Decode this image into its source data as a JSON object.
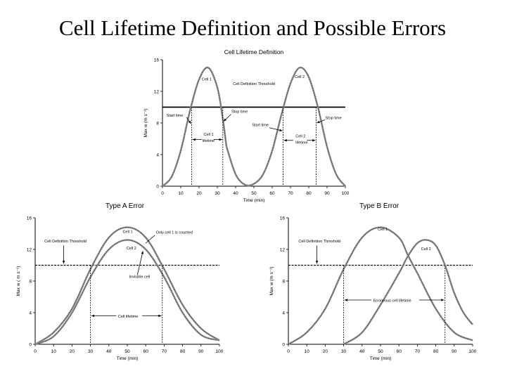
{
  "slide": {
    "title": "Cell Lifetime Definition and Possible Errors",
    "label_type_a": "Type A Error",
    "label_type_b": "Type B Error"
  },
  "chart_data": [
    {
      "type": "line",
      "title": "Cell Lifetime Definition",
      "xlabel": "Time (min)",
      "ylabel": "Max w (m s⁻¹)",
      "xlim": [
        0,
        100
      ],
      "ylim": [
        0,
        16
      ],
      "xticks": [
        0,
        10,
        20,
        30,
        40,
        50,
        60,
        70,
        80,
        90,
        100
      ],
      "yticks": [
        0,
        4,
        8,
        12,
        16
      ],
      "threshold": 10,
      "series": [
        {
          "name": "Cell 1",
          "x": [
            0,
            5,
            10,
            15,
            20,
            25,
            30,
            33,
            35
          ],
          "y": [
            0,
            1.2,
            4.5,
            9.5,
            13.5,
            15,
            12.5,
            8.5,
            5
          ]
        },
        {
          "name": "Cell 2",
          "x": [
            35,
            40,
            45,
            50,
            55,
            60,
            65,
            70,
            75,
            80,
            85,
            90,
            95,
            100
          ],
          "y": [
            5,
            1.5,
            0.2,
            0.3,
            1.5,
            4.5,
            9,
            13,
            15,
            13.8,
            10,
            5,
            1.5,
            0
          ]
        }
      ],
      "markers": [
        16,
        33,
        66,
        84
      ],
      "annotations": [
        "Cell 1",
        "Cell 2",
        "Cell Definition Threshold",
        "Stop time",
        "Start time",
        "Stop time",
        "Start time",
        "Cell 1",
        "lifetime",
        "Cell 2",
        "lifetime"
      ]
    },
    {
      "type": "line",
      "title": "",
      "xlabel": "Time (min)",
      "ylabel": "Max w ( m s⁻¹)",
      "xlim": [
        0,
        100
      ],
      "ylim": [
        0,
        16
      ],
      "xticks": [
        0,
        10,
        20,
        30,
        40,
        50,
        60,
        70,
        80,
        90,
        100
      ],
      "yticks": [
        0,
        4,
        8,
        12,
        16
      ],
      "threshold": 10,
      "series": [
        {
          "name": "Cell 1",
          "x": [
            0,
            10,
            20,
            30,
            40,
            50,
            60,
            70,
            80,
            90,
            100
          ],
          "y": [
            0,
            1.5,
            4.5,
            9.5,
            13.5,
            14.8,
            13.5,
            9.5,
            5,
            2,
            0.5
          ]
        },
        {
          "name": "Cell 2",
          "x": [
            0,
            10,
            20,
            30,
            40,
            50,
            60,
            70,
            80,
            90,
            100
          ],
          "y": [
            0,
            1,
            4,
            8.5,
            12,
            13.2,
            12,
            8.5,
            4,
            1.2,
            0.5
          ]
        }
      ],
      "markers": [
        30,
        69
      ],
      "annotations": [
        "Cell 1",
        "Only cell 1 is counted",
        "Cell Definition Threshold",
        "Cell 2",
        "Invisible cell",
        "Cell lifetime"
      ]
    },
    {
      "type": "line",
      "title": "",
      "xlabel": "Time (min)",
      "ylabel": "Max w (m s⁻¹)",
      "xlim": [
        0,
        100
      ],
      "ylim": [
        0,
        16
      ],
      "xticks": [
        0,
        10,
        20,
        30,
        40,
        50,
        60,
        70,
        80,
        90,
        100
      ],
      "yticks": [
        0,
        4,
        8,
        12,
        16
      ],
      "threshold": 10,
      "series": [
        {
          "name": "Cell 1",
          "x": [
            0,
            10,
            20,
            30,
            40,
            50,
            60,
            65,
            70,
            80,
            90,
            100
          ],
          "y": [
            0,
            1.5,
            4.5,
            9.5,
            13.5,
            14.8,
            13.5,
            11.2,
            9,
            4.5,
            1.5,
            0.5
          ]
        },
        {
          "name": "Cell 2",
          "x": [
            30,
            40,
            50,
            60,
            65,
            70,
            75,
            80,
            85,
            90,
            95,
            100
          ],
          "y": [
            0,
            1.5,
            5,
            9,
            11.2,
            12.8,
            13.2,
            12.5,
            10,
            6.5,
            4,
            2.5
          ]
        }
      ],
      "markers": [
        30,
        85
      ],
      "annotations": [
        "Cell 1",
        "Cell Definition Threshold",
        "Cell 2",
        "Erroneous cell lifetime"
      ]
    }
  ]
}
